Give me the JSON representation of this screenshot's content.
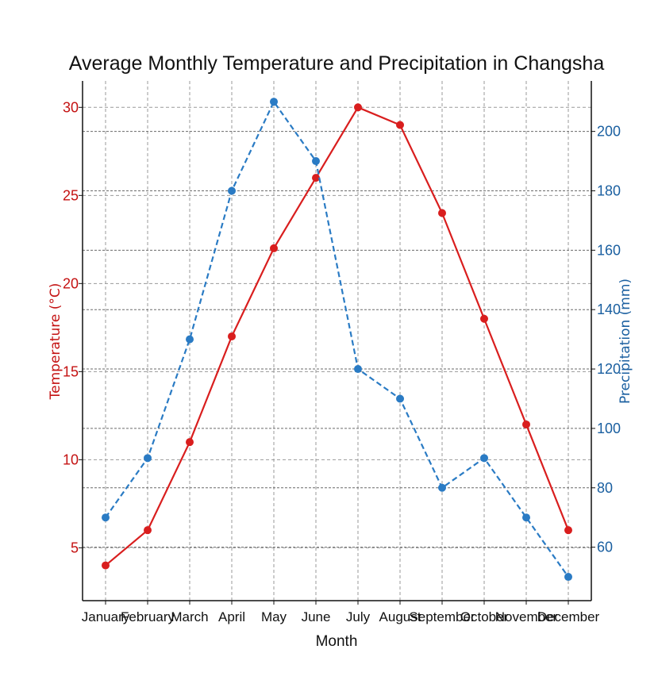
{
  "chart_data": {
    "type": "line",
    "title": "Average Monthly Temperature and Precipitation in Changsha",
    "xlabel": "Month",
    "categories": [
      "January",
      "February",
      "March",
      "April",
      "May",
      "June",
      "July",
      "August",
      "September",
      "October",
      "November",
      "December"
    ],
    "y_left": {
      "label": "Temperature (°C)",
      "ticks": [
        5,
        10,
        15,
        20,
        25,
        30
      ],
      "tick_labels": [
        "5",
        "10",
        "15",
        "20",
        "25",
        "30"
      ],
      "lim": [
        2.0,
        31.5
      ],
      "color": "#d91e1e"
    },
    "y_right": {
      "label": "Precipitation (mm)",
      "ticks": [
        60,
        80,
        100,
        120,
        140,
        160,
        180,
        200
      ],
      "tick_labels": [
        "60",
        "80",
        "100",
        "120",
        "140",
        "160",
        "180",
        "200"
      ],
      "lim": [
        42,
        217
      ],
      "color": "#1a5fa0"
    },
    "series": [
      {
        "name": "Temperature (°C)",
        "axis": "left",
        "style": "solid",
        "color": "#d91e1e",
        "values": [
          4,
          6,
          11,
          17,
          22,
          26,
          30,
          29,
          24,
          18,
          12,
          6
        ]
      },
      {
        "name": "Precipitation (mm)",
        "axis": "right",
        "style": "dashed",
        "color": "#2a7bc4",
        "values": [
          70,
          90,
          130,
          180,
          210,
          190,
          120,
          110,
          80,
          90,
          70,
          50
        ]
      }
    ],
    "grid": true
  }
}
